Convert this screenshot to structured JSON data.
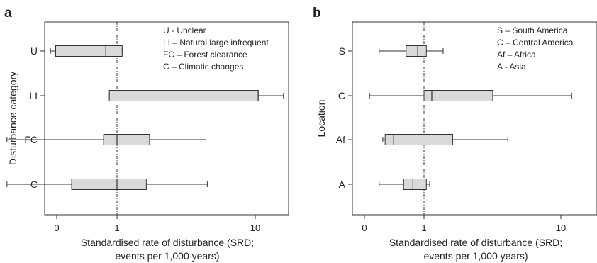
{
  "chart_data": [
    {
      "type": "boxplot",
      "panel_label": "a",
      "xlabel_line1": "Standardised rate of disturbance (SRD;",
      "xlabel_line2": "events per 1,000 years)",
      "ylabel": "Disturbance category",
      "x_scale": "log",
      "x_ticks": [
        "0",
        "1",
        "10"
      ],
      "reference_line_x": 1,
      "legend": [
        "U - Unclear",
        "LI – Natural large infrequent",
        "FC – Forest clearance",
        "C – Climatic changes"
      ],
      "categories": [
        "U",
        "LI",
        "FC",
        "C"
      ],
      "boxes": [
        {
          "category": "U",
          "whisker_low": 0.33,
          "q1": 0.36,
          "median": 0.83,
          "q3": 1.09,
          "whisker_high": 1.09
        },
        {
          "category": "LI",
          "whisker_low": 0.88,
          "q1": 0.88,
          "median": 10.5,
          "q3": 10.5,
          "whisker_high": 16.0
        },
        {
          "category": "FC",
          "whisker_low": 0.16,
          "q1": 0.8,
          "median": 1.0,
          "q3": 1.72,
          "whisker_high": 4.4
        },
        {
          "category": "C",
          "whisker_low": 0.16,
          "q1": 0.47,
          "median": 1.0,
          "q3": 1.63,
          "whisker_high": 4.5
        }
      ]
    },
    {
      "type": "boxplot",
      "panel_label": "b",
      "xlabel_line1": "Standardised rate of disturbance (SRD;",
      "xlabel_line2": "events per 1,000 years)",
      "ylabel": "Location",
      "x_scale": "log",
      "x_ticks": [
        "0",
        "1",
        "10"
      ],
      "reference_line_x": 1,
      "legend": [
        "S – South America",
        "C – Central America",
        "Af – Africa",
        "A - Asia"
      ],
      "categories": [
        "S",
        "C",
        "Af",
        "A"
      ],
      "boxes": [
        {
          "category": "S",
          "whisker_low": 0.47,
          "q1": 0.74,
          "median": 0.9,
          "q3": 1.04,
          "whisker_high": 1.38
        },
        {
          "category": "C",
          "whisker_low": 0.4,
          "q1": 1.0,
          "median": 1.14,
          "q3": 3.18,
          "whisker_high": 12.0
        },
        {
          "category": "Af",
          "whisker_low": 0.5,
          "q1": 0.52,
          "median": 0.6,
          "q3": 1.62,
          "whisker_high": 4.1
        },
        {
          "category": "A",
          "whisker_low": 0.47,
          "q1": 0.71,
          "median": 0.83,
          "q3": 1.04,
          "whisker_high": 1.1
        }
      ]
    }
  ]
}
